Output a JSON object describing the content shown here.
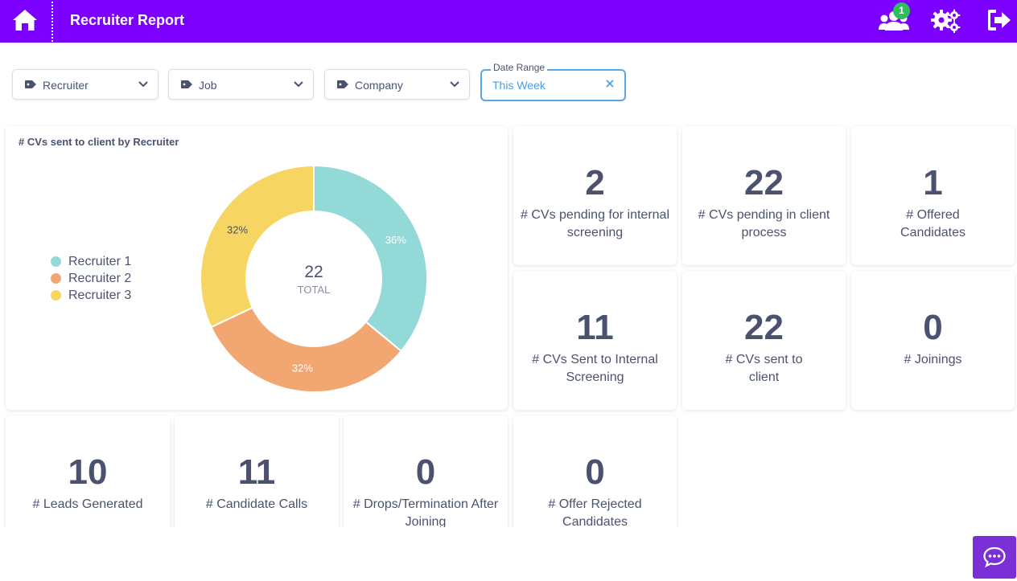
{
  "header": {
    "title": "Recruiter Report",
    "notification_count": "1",
    "icons": [
      "home-icon",
      "users-icon",
      "settings-icon",
      "logout-icon"
    ]
  },
  "filters": {
    "recruiter_label": "Recruiter",
    "job_label": "Job",
    "company_label": "Company",
    "date_range_legend": "Date Range",
    "date_range_value": "This Week"
  },
  "chart_card": {
    "title": "# CVs sent to client by Recruiter"
  },
  "chart_data": {
    "type": "pie",
    "title": "# CVs sent to client by Recruiter",
    "donut": true,
    "center_value": "22",
    "center_label": "TOTAL",
    "labels": [
      "Recruiter 1",
      "Recruiter 2",
      "Recruiter 3"
    ],
    "values": [
      36,
      32,
      32
    ],
    "value_labels": [
      "36%",
      "32%",
      "32%"
    ],
    "colors": [
      "#92d9d7",
      "#f2a772",
      "#f7d563"
    ],
    "legend_position": "left"
  },
  "stats": [
    {
      "value": "2",
      "label": "# CVs pending for internal screening"
    },
    {
      "value": "22",
      "label": "# CVs pending in client process"
    },
    {
      "value": "1",
      "label": "# Offered Candidates"
    },
    {
      "value": "11",
      "label": "# CVs Sent to Internal Screening"
    },
    {
      "value": "22",
      "label": "# CVs sent to client"
    },
    {
      "value": "0",
      "label": "# Joinings"
    },
    {
      "value": "10",
      "label": "# Leads Generated"
    },
    {
      "value": "11",
      "label": "# Candidate Calls"
    },
    {
      "value": "0",
      "label": "# Drops/Termination After Joining"
    },
    {
      "value": "0",
      "label": "# Offer Rejected Candidates"
    }
  ],
  "colors": {
    "brand": "#7b00ff",
    "badge": "#2dbf5a",
    "date_border": "#5aa7e6",
    "text": "#4a5270",
    "chat_button": "#7b2fd6"
  }
}
